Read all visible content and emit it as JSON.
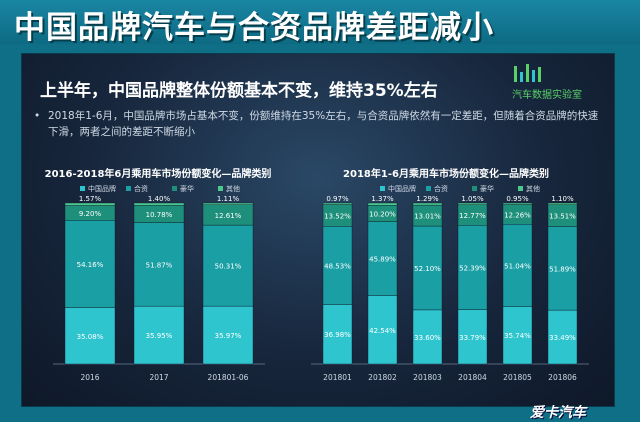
{
  "banner": {
    "title": "中国品牌汽车与合资品牌差距减小"
  },
  "panel": {
    "headline": "上半年，中国品牌整体份额基本不变，维持35%左右",
    "bullet": "2018年1-6月，中国品牌市场占基本不变，份额维持在35%左右，与合资品牌依然有一定差距，但随着合资品牌的快速下滑，两者之间的差距不断缩小",
    "logo_text": "汽车数据实验室",
    "logo_icon": "data-lab-logo-icon"
  },
  "footer": {
    "brand": "爱卡汽车"
  },
  "colors": {
    "中国品牌": "#2fc5cf",
    "合资": "#1a9fa5",
    "豪华": "#1d8f7a",
    "其他": "#4bc890"
  },
  "chart_data": [
    {
      "type": "bar",
      "stacked": true,
      "title": "2016-2018年6月乘用车市场份额变化—品牌类别",
      "categories": [
        "2016",
        "2017",
        "201801-06"
      ],
      "legend_position": "top",
      "ylim": [
        0,
        100
      ],
      "series": [
        {
          "name": "中国品牌",
          "values": [
            35.08,
            35.95,
            35.97
          ],
          "labels": [
            "35.08%",
            "35.95%",
            "35.97%"
          ]
        },
        {
          "name": "合资",
          "values": [
            54.16,
            51.87,
            50.31
          ],
          "labels": [
            "54.16%",
            "51.87%",
            "50.31%"
          ]
        },
        {
          "name": "豪华",
          "values": [
            9.2,
            10.78,
            12.61
          ],
          "labels": [
            "9.20%",
            "10.78%",
            "12.61%"
          ]
        },
        {
          "name": "其他",
          "values": [
            1.57,
            1.4,
            1.11
          ],
          "labels": [
            "1.57%",
            "1.40%",
            "1.11%"
          ]
        }
      ]
    },
    {
      "type": "bar",
      "stacked": true,
      "title": "2018年1-6月乘用车市场份额变化—品牌类别",
      "categories": [
        "201801",
        "201802",
        "201803",
        "201804",
        "201805",
        "201806"
      ],
      "legend_position": "top",
      "ylim": [
        0,
        100
      ],
      "series": [
        {
          "name": "中国品牌",
          "values": [
            36.98,
            42.54,
            33.6,
            33.79,
            35.74,
            33.49
          ],
          "labels": [
            "36.98%",
            "42.54%",
            "33.60%",
            "33.79%",
            "35.74%",
            "33.49%"
          ]
        },
        {
          "name": "合资",
          "values": [
            48.53,
            45.89,
            52.1,
            52.39,
            51.04,
            51.89
          ],
          "labels": [
            "48.53%",
            "45.89%",
            "52.10%",
            "52.39%",
            "51.04%",
            "51.89%"
          ]
        },
        {
          "name": "豪华",
          "values": [
            13.52,
            10.2,
            13.01,
            12.77,
            12.26,
            13.51
          ],
          "labels": [
            "13.52%",
            "10.20%",
            "13.01%",
            "12.77%",
            "12.26%",
            "13.51%"
          ]
        },
        {
          "name": "其他",
          "values": [
            0.97,
            1.37,
            1.29,
            1.05,
            0.95,
            1.1
          ],
          "labels": [
            "0.97%",
            "1.37%",
            "1.29%",
            "1.05%",
            "0.95%",
            "1.10%"
          ]
        }
      ]
    }
  ]
}
